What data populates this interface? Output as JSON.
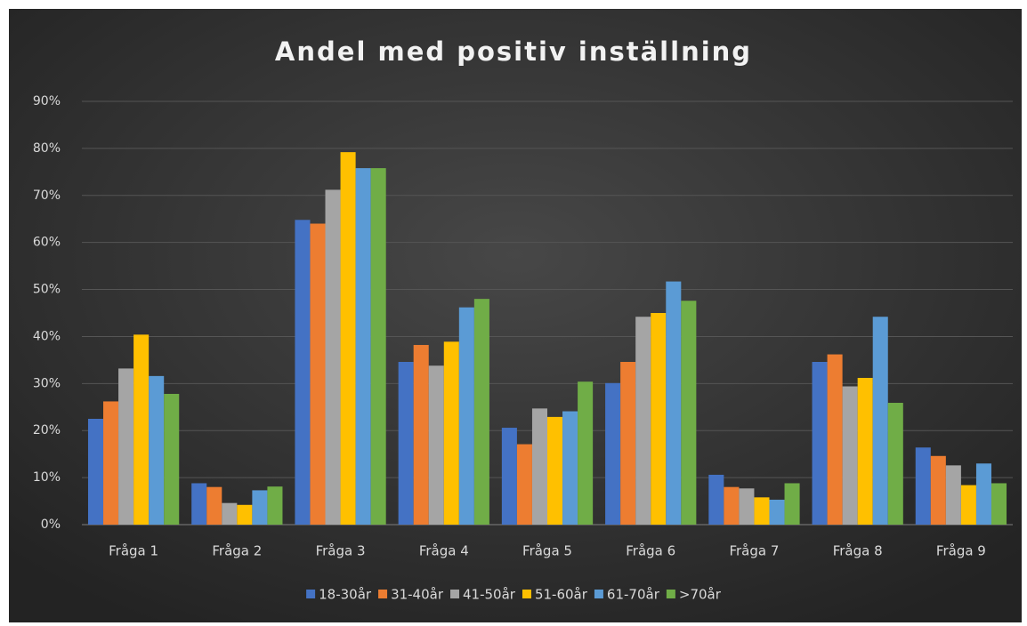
{
  "chart_data": {
    "type": "bar",
    "title": "Andel med positiv inställning",
    "categories": [
      "Fråga 1",
      "Fråga 2",
      "Fråga 3",
      "Fråga 4",
      "Fråga 5",
      "Fråga 6",
      "Fråga 7",
      "Fråga 8",
      "Fråga 9"
    ],
    "series": [
      {
        "name": "18-30år",
        "color": "#4472c4",
        "values": [
          22.5,
          8.8,
          64.8,
          34.6,
          20.6,
          30.1,
          10.6,
          34.6,
          16.4
        ]
      },
      {
        "name": "31-40år",
        "color": "#ed7d31",
        "values": [
          26.2,
          8.0,
          64.0,
          38.2,
          17.1,
          34.6,
          8.0,
          36.2,
          14.6
        ]
      },
      {
        "name": "41-50år",
        "color": "#a5a5a5",
        "values": [
          33.2,
          4.6,
          71.2,
          33.8,
          24.7,
          44.2,
          7.7,
          29.4,
          12.6
        ]
      },
      {
        "name": "51-60år",
        "color": "#ffc000",
        "values": [
          40.4,
          4.2,
          79.2,
          38.9,
          22.9,
          45.0,
          5.8,
          31.2,
          8.4
        ]
      },
      {
        "name": "61-70år",
        "color": "#5b9bd5",
        "values": [
          31.6,
          7.3,
          75.8,
          46.2,
          24.1,
          51.7,
          5.3,
          44.2,
          13.0
        ]
      },
      {
        "name": ">70år",
        "color": "#70ad47",
        "values": [
          27.8,
          8.1,
          75.8,
          48.0,
          30.4,
          47.6,
          8.8,
          25.9,
          8.8
        ]
      }
    ],
    "ylim": [
      0,
      90
    ],
    "yticks": [
      {
        "value": 0,
        "label": "0%"
      },
      {
        "value": 10,
        "label": "10%"
      },
      {
        "value": 20,
        "label": "20%"
      },
      {
        "value": 30,
        "label": "30%"
      },
      {
        "value": 40,
        "label": "40%"
      },
      {
        "value": 50,
        "label": "50%"
      },
      {
        "value": 60,
        "label": "60%"
      },
      {
        "value": 70,
        "label": "70%"
      },
      {
        "value": 80,
        "label": "80%"
      },
      {
        "value": 90,
        "label": "90%"
      }
    ],
    "grid": true,
    "legend": "bottom"
  }
}
